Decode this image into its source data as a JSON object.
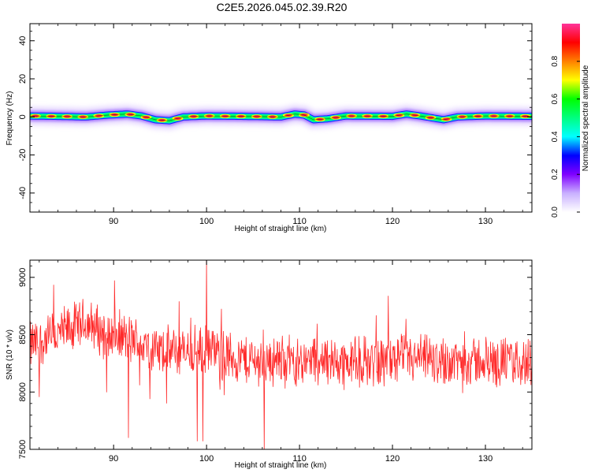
{
  "title": "C2E5.2026.045.02.39.R20",
  "chart_data": [
    {
      "type": "heatmap",
      "xlabel": "Height of straight line (km)",
      "ylabel": "Frequency (Hz)",
      "xlim": [
        81,
        135
      ],
      "ylim": [
        -50,
        49
      ],
      "x_ticks": [
        90,
        100,
        110,
        120,
        130
      ],
      "y_ticks": [
        -40,
        -20,
        0,
        20,
        40
      ],
      "colorbar": {
        "label": "Normalized spectral amplitude",
        "range": [
          0,
          1
        ],
        "ticks": [
          "0.0",
          "0.2",
          "0.4",
          "0.6",
          "0.8"
        ],
        "colors": [
          "#ffffff",
          "#c9b0ff",
          "#8000ff",
          "#0000ff",
          "#00ffff",
          "#00ff80",
          "#00ff00",
          "#ffff00",
          "#ff8000",
          "#ff0000",
          "#ff3399"
        ]
      },
      "ridge": [
        {
          "x": 81.0,
          "f": 0.5
        },
        {
          "x": 84.0,
          "f": 0.3
        },
        {
          "x": 87.0,
          "f": 0.0
        },
        {
          "x": 89.5,
          "f": 1.0
        },
        {
          "x": 91.5,
          "f": 1.5
        },
        {
          "x": 93.0,
          "f": 0.5
        },
        {
          "x": 94.5,
          "f": -1.5
        },
        {
          "x": 96.0,
          "f": -2.0
        },
        {
          "x": 97.5,
          "f": 0.0
        },
        {
          "x": 100.0,
          "f": 0.5
        },
        {
          "x": 104.0,
          "f": 0.3
        },
        {
          "x": 108.0,
          "f": 0.0
        },
        {
          "x": 109.5,
          "f": 1.5
        },
        {
          "x": 110.5,
          "f": 1.0
        },
        {
          "x": 111.5,
          "f": -1.5
        },
        {
          "x": 113.0,
          "f": -1.0
        },
        {
          "x": 115.0,
          "f": 0.5
        },
        {
          "x": 120.0,
          "f": 0.3
        },
        {
          "x": 121.5,
          "f": 1.5
        },
        {
          "x": 123.0,
          "f": 0.5
        },
        {
          "x": 125.5,
          "f": -1.5
        },
        {
          "x": 127.0,
          "f": 0.0
        },
        {
          "x": 130.0,
          "f": 0.5
        },
        {
          "x": 135.0,
          "f": 0.3
        }
      ]
    },
    {
      "type": "line",
      "xlabel": "Height of straight line (km)",
      "ylabel": "SNR (10 * v/v)",
      "xlim": [
        81,
        135
      ],
      "ylim": [
        7500,
        9150
      ],
      "x_ticks": [
        90,
        100,
        110,
        120,
        130
      ],
      "y_ticks": [
        7500,
        8000,
        8500,
        9000
      ],
      "series_color": "#ff2a2a",
      "trend": [
        {
          "x": 81,
          "y": 8400
        },
        {
          "x": 84,
          "y": 8500
        },
        {
          "x": 87,
          "y": 8600
        },
        {
          "x": 89,
          "y": 8520
        },
        {
          "x": 92,
          "y": 8450
        },
        {
          "x": 95,
          "y": 8350
        },
        {
          "x": 100,
          "y": 8350
        },
        {
          "x": 105,
          "y": 8270
        },
        {
          "x": 110,
          "y": 8280
        },
        {
          "x": 115,
          "y": 8260
        },
        {
          "x": 120,
          "y": 8280
        },
        {
          "x": 125,
          "y": 8270
        },
        {
          "x": 130,
          "y": 8270
        },
        {
          "x": 135,
          "y": 8260
        }
      ],
      "noise_amplitude": 200,
      "sample_step_km": 0.05,
      "notable_points": [
        {
          "x": 91.6,
          "y": 7600
        },
        {
          "x": 99.0,
          "y": 7570
        },
        {
          "x": 99.6,
          "y": 7570
        },
        {
          "x": 100.0,
          "y": 9150
        },
        {
          "x": 106.2,
          "y": 7500
        }
      ]
    }
  ]
}
